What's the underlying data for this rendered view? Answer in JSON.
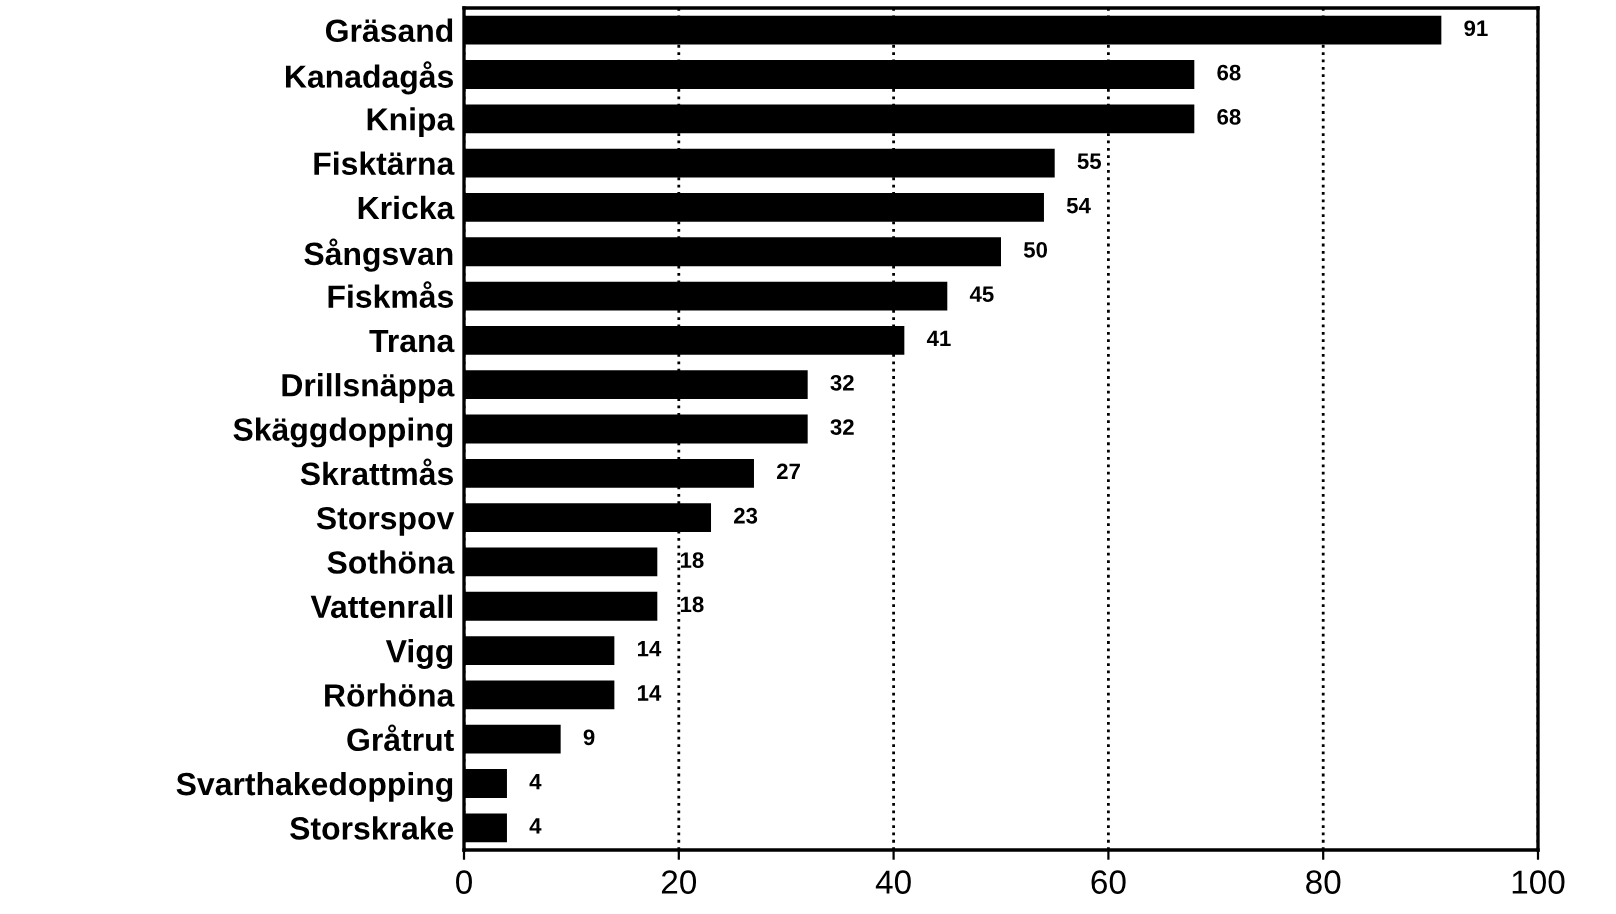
{
  "chart_data": {
    "type": "bar",
    "orientation": "horizontal",
    "categories": [
      "Gräsand",
      "Kanadagås",
      "Knipa",
      "Fisktärna",
      "Kricka",
      "Sångsvan",
      "Fiskmås",
      "Trana",
      "Drillsnäppa",
      "Skäggdopping",
      "Skrattmås",
      "Storspov",
      "Sothöna",
      "Vattenrall",
      "Vigg",
      "Rörhöna",
      "Gråtrut",
      "Svarthakedopping",
      "Storskrake"
    ],
    "values": [
      91,
      68,
      68,
      55,
      54,
      50,
      45,
      41,
      32,
      32,
      27,
      23,
      18,
      18,
      14,
      14,
      9,
      4,
      4
    ],
    "color": "#000000",
    "xlim": [
      0,
      100
    ],
    "xticks": [
      0,
      20,
      40,
      60,
      80,
      100
    ],
    "grid": "x",
    "data_labels": true
  }
}
